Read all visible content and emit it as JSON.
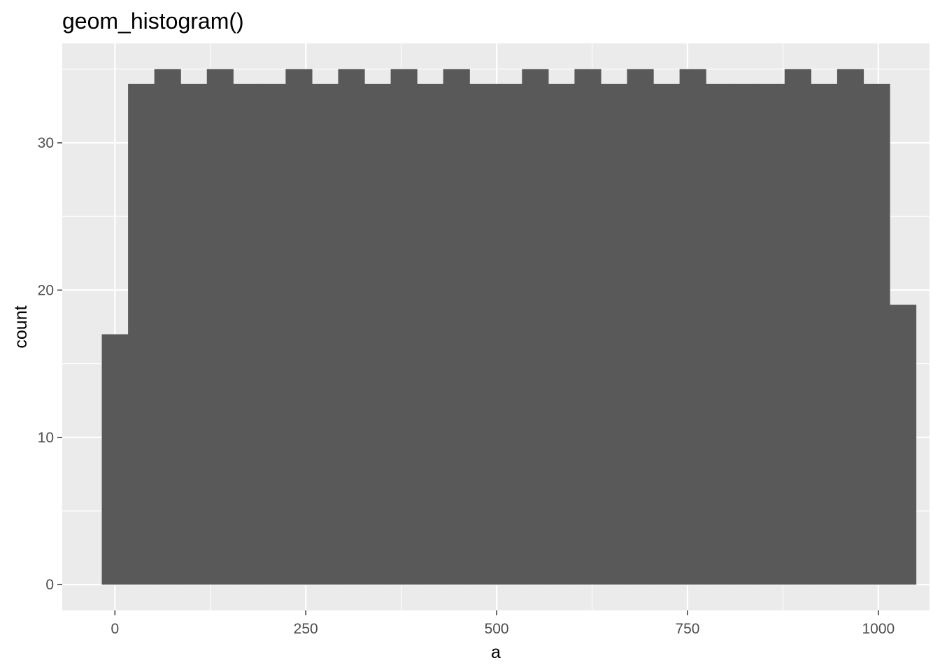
{
  "chart_data": {
    "type": "bar",
    "title": "geom_histogram()",
    "xlabel": "a",
    "ylabel": "count",
    "xlim": [
      -69,
      1067
    ],
    "ylim": [
      -1.75,
      36.75
    ],
    "x_ticks": [
      0,
      250,
      500,
      750,
      1000
    ],
    "y_ticks": [
      0,
      10,
      20,
      30
    ],
    "x_tick_labels": [
      "0",
      "250",
      "500",
      "750",
      "1000"
    ],
    "y_tick_labels": [
      "0",
      "10",
      "20",
      "30"
    ],
    "grid": true,
    "legend": "none",
    "bin_start": -17.2,
    "bin_width": 34.4,
    "values": [
      17,
      34,
      35,
      34,
      35,
      34,
      34,
      35,
      34,
      35,
      34,
      35,
      34,
      35,
      34,
      34,
      35,
      34,
      35,
      34,
      35,
      34,
      35,
      34,
      34,
      34,
      35,
      34,
      35,
      34,
      19
    ],
    "colors": {
      "panel_background": "#ebebeb",
      "grid_major": "#ffffff",
      "bar_fill": "#595959",
      "tick_text": "#4d4d4d",
      "tick_mark": "#333333"
    }
  }
}
